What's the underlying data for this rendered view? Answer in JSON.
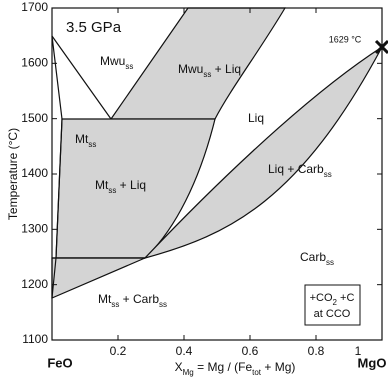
{
  "chart_data": {
    "type": "phase-diagram",
    "title": "3.5 GPa",
    "x_label": [
      "X",
      "Mg",
      " = Mg / (Fe",
      "tot",
      " + Mg)"
    ],
    "y_label": "Temperature (°C)",
    "x_end_labels": [
      "FeO",
      "MgO"
    ],
    "xlim": [
      0,
      1
    ],
    "ylim": [
      1100,
      1700
    ],
    "xticks": [
      0.2,
      0.4,
      0.6,
      0.8,
      1
    ],
    "yticks": [
      1100,
      1200,
      1300,
      1400,
      1500,
      1600,
      1700
    ],
    "annotations": {
      "melting_point": "1629 °C",
      "mwu": [
        "Mwu",
        "ss"
      ],
      "mwu_liq": [
        "Mwu",
        "ss",
        " + Liq"
      ],
      "liq": "Liq",
      "mt": [
        "Mt",
        "ss"
      ],
      "mt_liq": [
        "Mt",
        "ss",
        " + Liq"
      ],
      "liq_carb": [
        "Liq + Carb",
        "ss"
      ],
      "carb": [
        "Carb",
        "ss"
      ],
      "mt_carb": [
        "Mt",
        "ss",
        " + Carb",
        "ss"
      ],
      "conditions": [
        "+CO",
        "2",
        "  +C",
        "at CCO"
      ]
    }
  }
}
